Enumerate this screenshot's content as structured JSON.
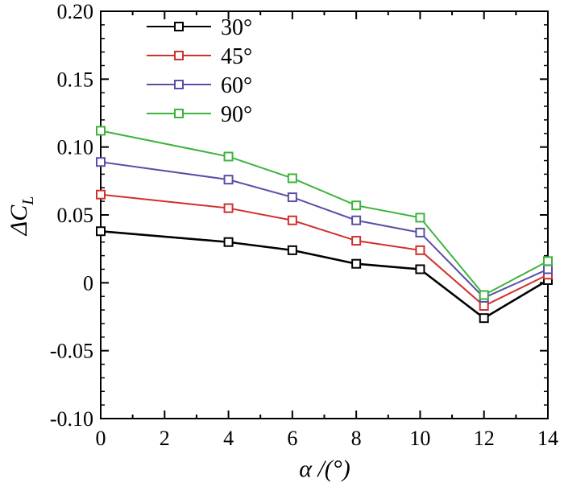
{
  "chart_data": {
    "type": "line",
    "x": [
      0,
      4,
      6,
      8,
      10,
      12,
      14
    ],
    "series": [
      {
        "name": "30°",
        "color": "#000000",
        "values": [
          0.038,
          0.03,
          0.024,
          0.014,
          0.01,
          -0.026,
          0.002
        ]
      },
      {
        "name": "45°",
        "color": "#d0312d",
        "values": [
          0.065,
          0.055,
          0.046,
          0.031,
          0.024,
          -0.017,
          0.006
        ]
      },
      {
        "name": "60°",
        "color": "#5a4fa8",
        "values": [
          0.089,
          0.076,
          0.063,
          0.046,
          0.037,
          -0.011,
          0.01
        ]
      },
      {
        "name": "90°",
        "color": "#3cb43c",
        "values": [
          0.112,
          0.093,
          0.077,
          0.057,
          0.048,
          -0.009,
          0.016
        ]
      }
    ],
    "xlim": [
      0,
      14
    ],
    "ylim": [
      -0.1,
      0.2
    ],
    "xticks": [
      0,
      2,
      4,
      6,
      8,
      10,
      12,
      14
    ],
    "xtick_labels": [
      "0",
      "2",
      "4",
      "6",
      "8",
      "10",
      "12",
      "14"
    ],
    "yticks": [
      -0.1,
      -0.05,
      0,
      0.05,
      0.1,
      0.15,
      0.2
    ],
    "ytick_labels": [
      "-0.10",
      "-0.05",
      "0",
      "0.05",
      "0.10",
      "0.15",
      "0.20"
    ],
    "xlabel": "α /(°)",
    "ylabel_main": "ΔC",
    "ylabel_sub": "L",
    "legend_position": "top-left",
    "grid": false,
    "marker": "open-square"
  }
}
